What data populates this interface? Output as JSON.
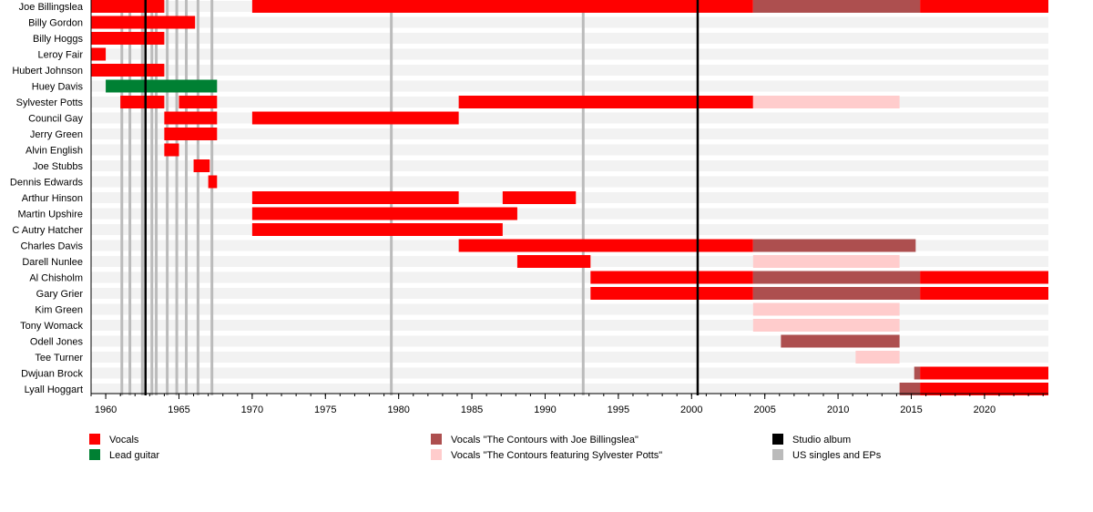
{
  "chart_data": {
    "type": "timeline",
    "xlim": [
      1959.0,
      2024.36
    ],
    "x_ticks": [
      1960,
      1965,
      1970,
      1975,
      1980,
      1985,
      1990,
      1995,
      2000,
      2005,
      2010,
      2015,
      2020
    ],
    "x_minor_tick_step": 1,
    "colors": {
      "Vocals": "#ff0000",
      "Lead guitar": "#008033",
      "Vocals \"The Contours with Joe Billingslea\"": "#ad4f4f",
      "Vocals \"The Contours featuring Sylvester Potts\"": "#ffcccc",
      "Studio album": "#000000",
      "US singles and EPs": "#bbbbbb",
      "row_background": "#f2f2f2"
    },
    "members": [
      {
        "name": "Joe Billingslea",
        "bars": [
          [
            1959.0,
            1964.0,
            "Vocals"
          ],
          [
            1970.0,
            2004.2,
            "Vocals"
          ],
          [
            2004.2,
            2015.6,
            "Vocals \"The Contours with Joe Billingslea\""
          ],
          [
            2015.6,
            2024.36,
            "Vocals"
          ]
        ]
      },
      {
        "name": "Billy Gordon",
        "bars": [
          [
            1959.0,
            1966.1,
            "Vocals"
          ]
        ]
      },
      {
        "name": "Billy Hoggs",
        "bars": [
          [
            1959.0,
            1964.0,
            "Vocals"
          ]
        ]
      },
      {
        "name": "Leroy Fair",
        "bars": [
          [
            1959.0,
            1960.0,
            "Vocals"
          ]
        ]
      },
      {
        "name": "Hubert Johnson",
        "bars": [
          [
            1959.0,
            1964.0,
            "Vocals"
          ]
        ]
      },
      {
        "name": "Huey Davis",
        "bars": [
          [
            1960.0,
            1967.6,
            "Lead guitar"
          ]
        ]
      },
      {
        "name": "Sylvester Potts",
        "bars": [
          [
            1961.0,
            1964.0,
            "Vocals"
          ],
          [
            1965.0,
            1967.6,
            "Vocals"
          ],
          [
            1984.1,
            2004.2,
            "Vocals"
          ],
          [
            2004.2,
            2014.2,
            "Vocals \"The Contours featuring Sylvester Potts\""
          ]
        ]
      },
      {
        "name": "Council Gay",
        "bars": [
          [
            1964.0,
            1967.6,
            "Vocals"
          ],
          [
            1970.0,
            1984.1,
            "Vocals"
          ]
        ]
      },
      {
        "name": "Jerry Green",
        "bars": [
          [
            1964.0,
            1967.6,
            "Vocals"
          ]
        ]
      },
      {
        "name": "Alvin English",
        "bars": [
          [
            1964.0,
            1965.0,
            "Vocals"
          ]
        ]
      },
      {
        "name": "Joe Stubbs",
        "bars": [
          [
            1966.0,
            1967.1,
            "Vocals"
          ]
        ]
      },
      {
        "name": "Dennis Edwards",
        "bars": [
          [
            1967.0,
            1967.6,
            "Vocals"
          ]
        ]
      },
      {
        "name": "Arthur Hinson",
        "bars": [
          [
            1970.0,
            1984.1,
            "Vocals"
          ],
          [
            1987.1,
            1992.1,
            "Vocals"
          ]
        ]
      },
      {
        "name": "Martin Upshire",
        "bars": [
          [
            1970.0,
            1988.1,
            "Vocals"
          ]
        ]
      },
      {
        "name": "C Autry Hatcher",
        "bars": [
          [
            1970.0,
            1987.1,
            "Vocals"
          ]
        ]
      },
      {
        "name": "Charles Davis",
        "bars": [
          [
            1984.1,
            2004.2,
            "Vocals"
          ],
          [
            2004.2,
            2015.3,
            "Vocals \"The Contours with Joe Billingslea\""
          ]
        ]
      },
      {
        "name": "Darell Nunlee",
        "bars": [
          [
            1988.1,
            1993.1,
            "Vocals"
          ],
          [
            2004.2,
            2014.2,
            "Vocals \"The Contours featuring Sylvester Potts\""
          ]
        ]
      },
      {
        "name": "Al Chisholm",
        "bars": [
          [
            1993.1,
            2004.2,
            "Vocals"
          ],
          [
            2004.2,
            2015.6,
            "Vocals \"The Contours with Joe Billingslea\""
          ],
          [
            2015.6,
            2024.36,
            "Vocals"
          ]
        ]
      },
      {
        "name": "Gary Grier",
        "bars": [
          [
            1993.1,
            2004.2,
            "Vocals"
          ],
          [
            2004.2,
            2015.6,
            "Vocals \"The Contours with Joe Billingslea\""
          ],
          [
            2015.6,
            2024.36,
            "Vocals"
          ]
        ]
      },
      {
        "name": "Kim Green",
        "bars": [
          [
            2004.2,
            2014.2,
            "Vocals \"The Contours featuring Sylvester Potts\""
          ]
        ]
      },
      {
        "name": "Tony Womack",
        "bars": [
          [
            2004.2,
            2014.2,
            "Vocals \"The Contours featuring Sylvester Potts\""
          ]
        ]
      },
      {
        "name": "Odell Jones",
        "bars": [
          [
            2006.1,
            2014.2,
            "Vocals \"The Contours with Joe Billingslea\""
          ]
        ]
      },
      {
        "name": "Tee Turner",
        "bars": [
          [
            2011.2,
            2014.2,
            "Vocals \"The Contours featuring Sylvester Potts\""
          ]
        ]
      },
      {
        "name": "Dwjuan Brock",
        "bars": [
          [
            2015.2,
            2015.6,
            "Vocals \"The Contours with Joe Billingslea\""
          ],
          [
            2015.6,
            2024.36,
            "Vocals"
          ]
        ]
      },
      {
        "name": "Lyall Hoggart",
        "bars": [
          [
            2014.2,
            2015.6,
            "Vocals \"The Contours with Joe Billingslea\""
          ],
          [
            2015.6,
            2024.36,
            "Vocals"
          ]
        ]
      }
    ],
    "studio_albums": [
      1962.7,
      2000.4
    ],
    "singles": [
      1961.1,
      1961.65,
      1962.5,
      1963.15,
      1963.45,
      1964.2,
      1964.85,
      1965.5,
      1966.3,
      1967.25,
      1979.5,
      1992.6
    ],
    "legend": [
      {
        "label": "Vocals",
        "key": "Vocals"
      },
      {
        "label": "Lead guitar",
        "key": "Lead guitar"
      },
      {
        "label": "Vocals \"The Contours with Joe Billingslea\"",
        "key": "Vocals \"The Contours with Joe Billingslea\""
      },
      {
        "label": "Vocals \"The Contours featuring Sylvester Potts\"",
        "key": "Vocals \"The Contours featuring Sylvester Potts\""
      },
      {
        "label": "Studio album",
        "key": "Studio album"
      },
      {
        "label": "US singles and EPs",
        "key": "US singles and EPs"
      }
    ],
    "legend_placement": "bottom"
  }
}
